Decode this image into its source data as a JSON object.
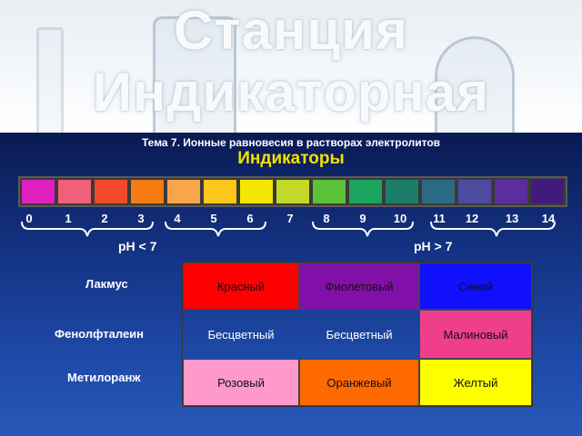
{
  "banner": {
    "line1": "Станция",
    "line2": "Индикаторная"
  },
  "topic": "Тема 7. Ионные равновесия в растворах электролитов",
  "heading": "Индикаторы",
  "scale": {
    "colors": [
      "#e21fbf",
      "#f0607a",
      "#f04a2a",
      "#f57b13",
      "#f7a64c",
      "#fac71a",
      "#f3e600",
      "#c3d92a",
      "#5cc23a",
      "#1aa45e",
      "#1c7e6a",
      "#2a6a82",
      "#4c4ba0",
      "#5a2e9c",
      "#421a7e"
    ],
    "numbers": [
      "0",
      "1",
      "2",
      "3",
      "4",
      "5",
      "6",
      "7",
      "8",
      "9",
      "10",
      "11",
      "12",
      "13",
      "14"
    ]
  },
  "ph_acid": "pH < 7",
  "ph_base": "pH > 7",
  "indicators": [
    {
      "name": "Лакмус",
      "values": [
        "Красный",
        "Фиолетовый",
        "Синий"
      ],
      "colors": [
        "#ff0000",
        "#8010a8",
        "#1010ff"
      ]
    },
    {
      "name": "Фенолфталеин",
      "values": [
        "Бесцветный",
        "Бесцветный",
        "Малиновый"
      ],
      "colors": [
        "transparent",
        "transparent",
        "#ef3f8c"
      ]
    },
    {
      "name": "Метилоранж",
      "values": [
        "Розовый",
        "Оранжевый",
        "Желтый"
      ],
      "colors": [
        "#ff99cc",
        "#ff6a00",
        "#ffff00"
      ]
    }
  ]
}
